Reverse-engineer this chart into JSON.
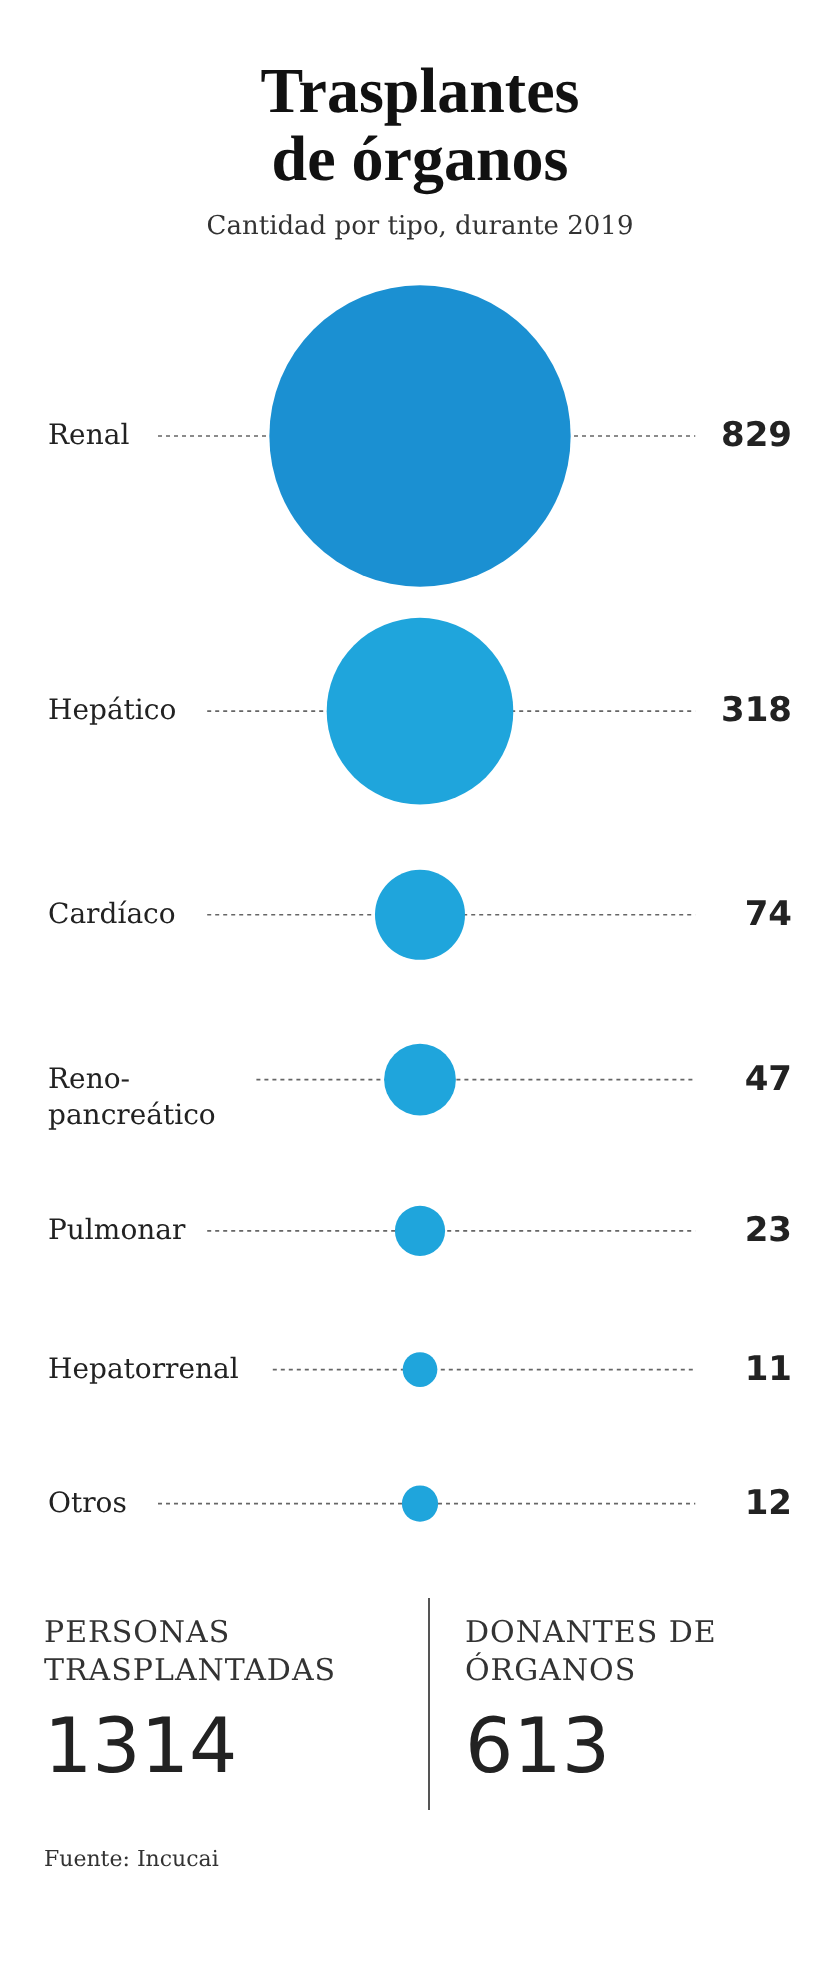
{
  "chart_data": {
    "type": "other",
    "title": "Trasplantes de órganos",
    "subtitle": "Cantidad por tipo, durante 2019",
    "categories": [
      "Renal",
      "Hepático",
      "Cardíaco",
      "Reno-pancreático",
      "Pulmonar",
      "Hepatorrenal",
      "Otros"
    ],
    "values": [
      829,
      318,
      74,
      47,
      23,
      11,
      12
    ],
    "colors": [
      "#1b90d2",
      "#1fa5dc",
      "#1fa5dc",
      "#1fa5dc",
      "#1fa5dc",
      "#1fa5dc",
      "#1fa5dc"
    ],
    "data_labels": true,
    "annotations": [
      "PERSONAS TRASPLANTADAS",
      "1314",
      "DONANTES DE ÓRGANOS",
      "613",
      "Fuente: Incucai"
    ]
  }
}
